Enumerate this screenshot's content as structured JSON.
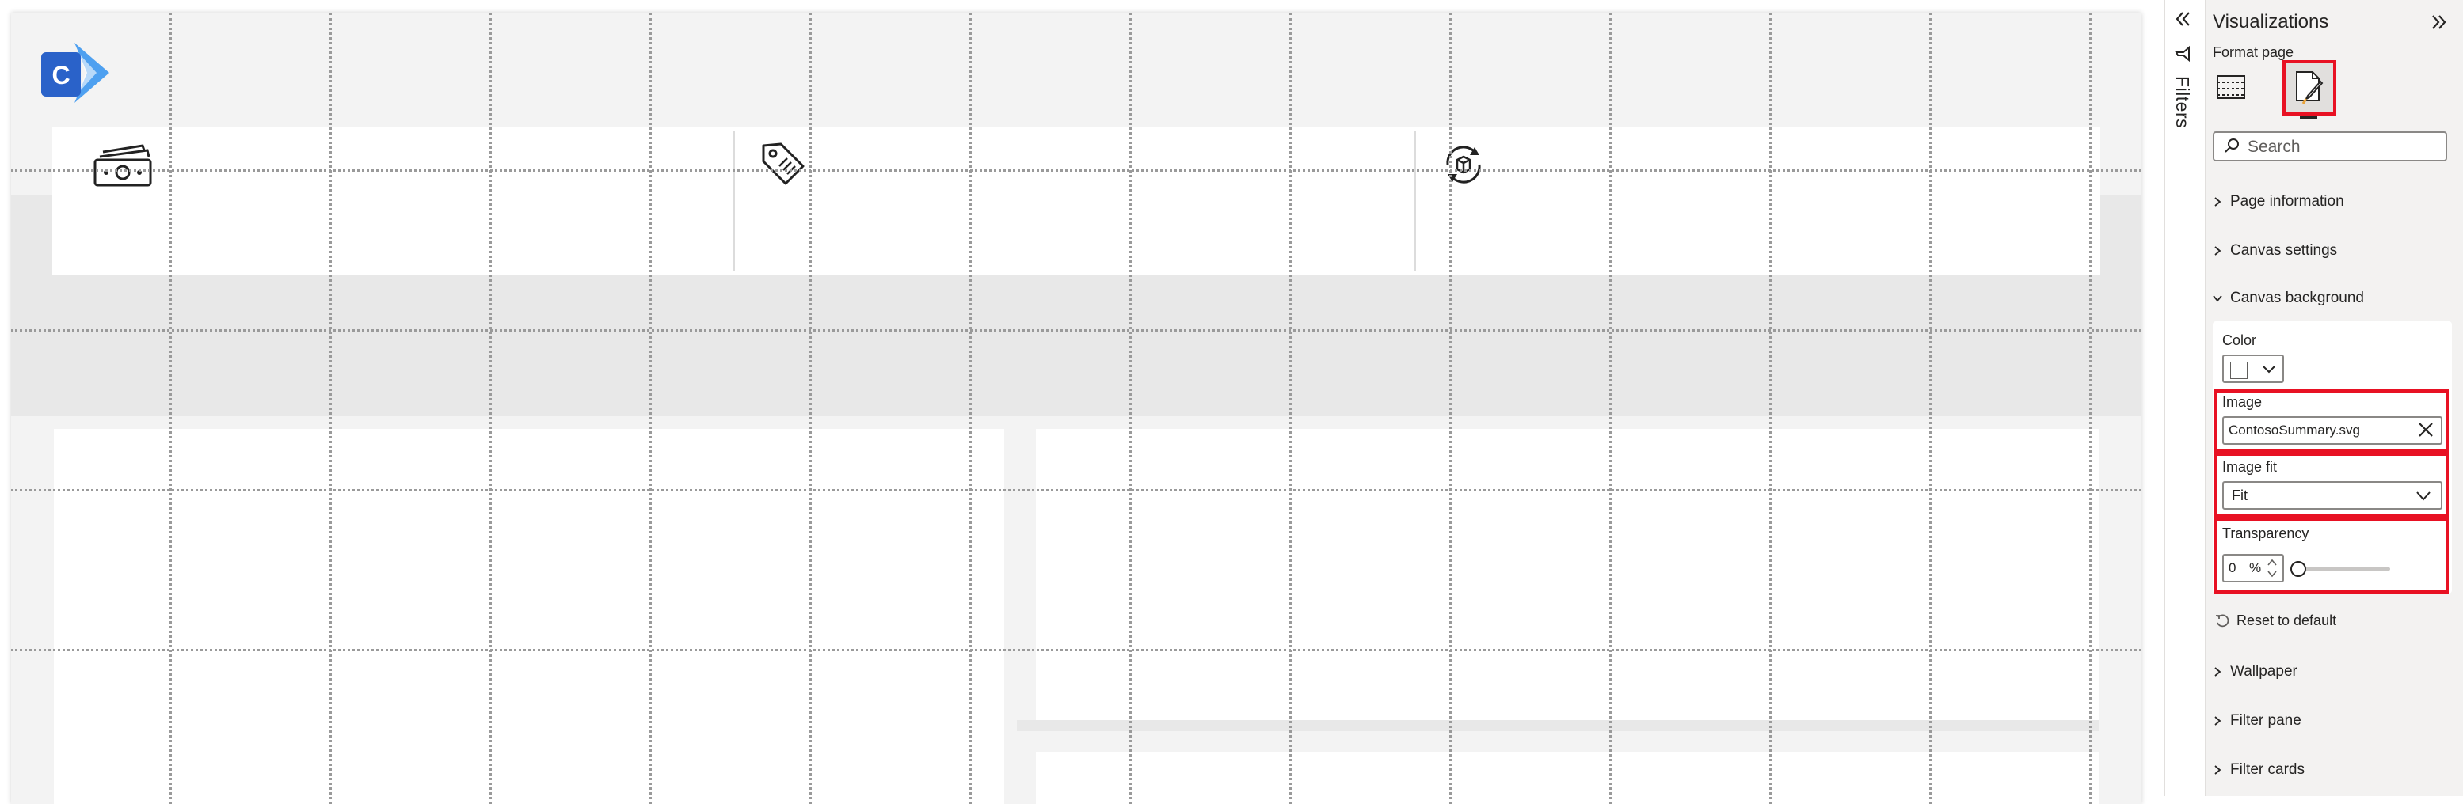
{
  "canvas": {
    "logo_letter": "C",
    "kpi_icons": [
      "money-icon",
      "price-tag-icon",
      "product-cycle-icon"
    ]
  },
  "filters": {
    "label": "Filters"
  },
  "visualizations": {
    "title": "Visualizations",
    "format_page_label": "Format page",
    "search_placeholder": "Search",
    "sections": {
      "page_information": "Page information",
      "canvas_settings": "Canvas settings",
      "canvas_background": "Canvas background",
      "wallpaper": "Wallpaper",
      "filter_pane": "Filter pane",
      "filter_cards": "Filter cards"
    },
    "canvas_background": {
      "color_label": "Color",
      "color_value": "#ffffff",
      "image_label": "Image",
      "image_value": "ContosoSummary.svg",
      "image_fit_label": "Image fit",
      "image_fit_value": "Fit",
      "transparency_label": "Transparency",
      "transparency_value": "0",
      "transparency_unit": "%",
      "reset_label": "Reset to default"
    }
  },
  "colors": {
    "highlight": "#e81123",
    "logo_primary": "#2a62c9",
    "logo_secondary": "#4ea0f0"
  }
}
